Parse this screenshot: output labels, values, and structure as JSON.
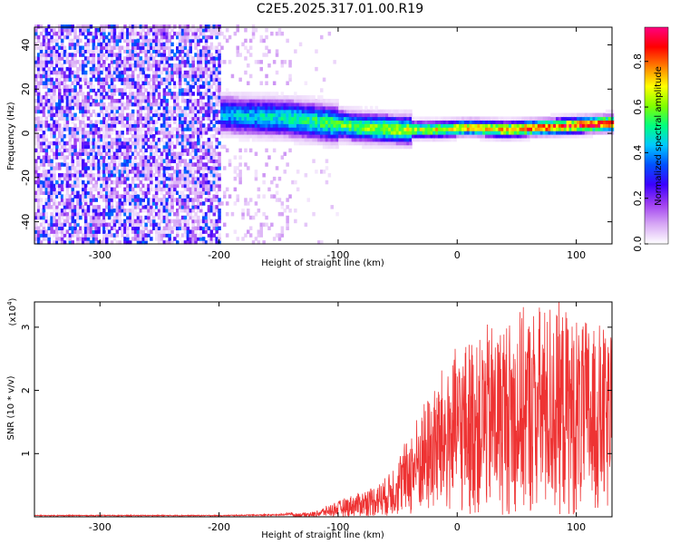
{
  "title": "C2E5.2025.317.01.00.R19",
  "chart_data": [
    {
      "type": "heatmap",
      "xlabel": "Height of straight line (km)",
      "ylabel": "Frequency (Hz)",
      "xlim": [
        -355,
        130
      ],
      "ylim": [
        -50,
        48
      ],
      "x_ticks": [
        -300,
        -200,
        -100,
        0,
        100
      ],
      "y_ticks": [
        -40,
        -20,
        0,
        20,
        40
      ],
      "colorbar": {
        "label": "Normalized spectral amplitude",
        "range": [
          0.0,
          0.95
        ],
        "ticks": [
          "0.0",
          "0.2",
          "0.4",
          "0.6",
          "0.8"
        ],
        "tick_values": [
          0.0,
          0.2,
          0.4,
          0.6,
          0.8
        ],
        "colors": [
          "#ffffff",
          "#d7a8f5",
          "#a040f0",
          "#3c00ff",
          "#0050ff",
          "#00c8ff",
          "#00ff80",
          "#80ff00",
          "#ffff00",
          "#ff8000",
          "#ff0000",
          "#ff0080"
        ]
      },
      "ridge": [
        {
          "x": -200,
          "y": 8
        },
        {
          "x": -170,
          "y": 7
        },
        {
          "x": -140,
          "y": 6
        },
        {
          "x": -110,
          "y": 4
        },
        {
          "x": -80,
          "y": 2
        },
        {
          "x": -50,
          "y": 1
        },
        {
          "x": -20,
          "y": 1
        },
        {
          "x": 10,
          "y": 2
        },
        {
          "x": 40,
          "y": 1
        },
        {
          "x": 70,
          "y": 2
        },
        {
          "x": 100,
          "y": 3
        },
        {
          "x": 130,
          "y": 4
        }
      ],
      "regions": [
        {
          "name": "noise",
          "x_range": [
            -355,
            -200
          ],
          "amplitude": 0.25
        },
        {
          "name": "sparse",
          "x_range": [
            -200,
            -140
          ],
          "amplitude": 0.08
        },
        {
          "name": "signal-band",
          "x_range": [
            -200,
            130
          ],
          "amplitude": 0.9
        }
      ]
    },
    {
      "type": "line",
      "xlabel": "Height of straight line (km)",
      "ylabel": "SNR (10 * v/v)",
      "multiplier_label": "(x10",
      "multiplier_exp": "4",
      "multiplier_close": ")",
      "xlim": [
        -355,
        130
      ],
      "ylim": [
        0,
        3.4
      ],
      "x_ticks": [
        -300,
        -200,
        -100,
        0,
        100
      ],
      "y_ticks": [
        1,
        2,
        3
      ],
      "color": "#ee3333",
      "envelope": [
        {
          "x": -355,
          "y": 0.02
        },
        {
          "x": -200,
          "y": 0.02
        },
        {
          "x": -150,
          "y": 0.03
        },
        {
          "x": -120,
          "y": 0.08
        },
        {
          "x": -100,
          "y": 0.25
        },
        {
          "x": -80,
          "y": 0.4
        },
        {
          "x": -60,
          "y": 0.6
        },
        {
          "x": -40,
          "y": 1.3
        },
        {
          "x": -20,
          "y": 2.1
        },
        {
          "x": 0,
          "y": 2.6
        },
        {
          "x": 20,
          "y": 2.9
        },
        {
          "x": 40,
          "y": 3.1
        },
        {
          "x": 60,
          "y": 3.2
        },
        {
          "x": 80,
          "y": 3.35
        },
        {
          "x": 100,
          "y": 3.1
        },
        {
          "x": 130,
          "y": 2.9
        }
      ]
    }
  ]
}
